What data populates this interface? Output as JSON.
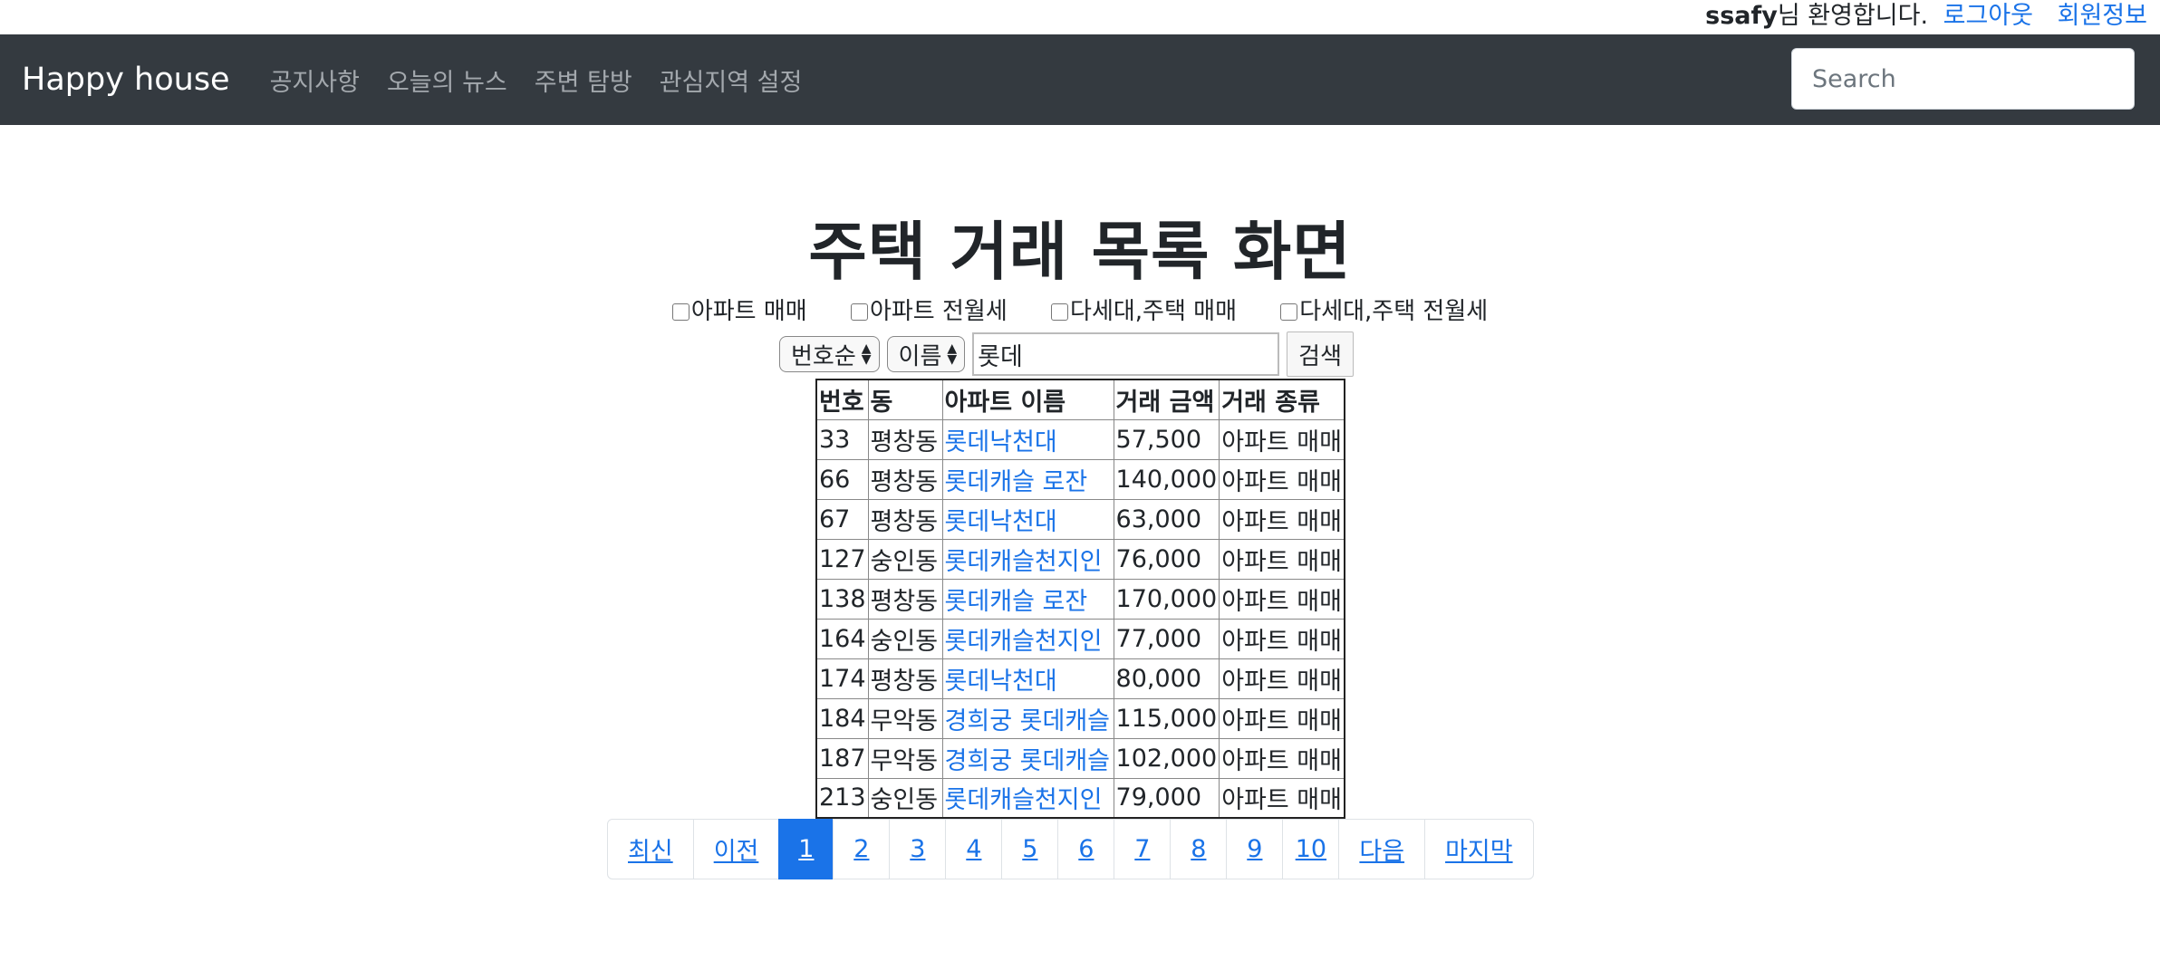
{
  "topbar": {
    "username": "ssafy",
    "greeting": "님 환영합니다.",
    "logout": "로그아웃",
    "profile": "회원정보"
  },
  "navbar": {
    "brand": "Happy house",
    "links": [
      "공지사항",
      "오늘의 뉴스",
      "주변 탐방",
      "관심지역 설정"
    ],
    "search_placeholder": "Search"
  },
  "page_title": "주택 거래 목록 화면",
  "filters": [
    "아파트 매매",
    "아파트 전월세",
    "다세대,주택 매매",
    "다세대,주택 전월세"
  ],
  "controls": {
    "sort_select": "번호순",
    "field_select": "이름",
    "query": "롯데",
    "search_button": "검색"
  },
  "table": {
    "headers": [
      "번호",
      "동",
      "아파트 이름",
      "거래 금액",
      "거래 종류"
    ],
    "rows": [
      [
        "33",
        "평창동",
        "롯데낙천대",
        "57,500",
        "아파트 매매"
      ],
      [
        "66",
        "평창동",
        "롯데캐슬 로잔",
        "140,000",
        "아파트 매매"
      ],
      [
        "67",
        "평창동",
        "롯데낙천대",
        "63,000",
        "아파트 매매"
      ],
      [
        "127",
        "숭인동",
        "롯데캐슬천지인",
        "76,000",
        "아파트 매매"
      ],
      [
        "138",
        "평창동",
        "롯데캐슬 로잔",
        "170,000",
        "아파트 매매"
      ],
      [
        "164",
        "숭인동",
        "롯데캐슬천지인",
        "77,000",
        "아파트 매매"
      ],
      [
        "174",
        "평창동",
        "롯데낙천대",
        "80,000",
        "아파트 매매"
      ],
      [
        "184",
        "무악동",
        "경희궁 롯데캐슬",
        "115,000",
        "아파트 매매"
      ],
      [
        "187",
        "무악동",
        "경희궁 롯데캐슬",
        "102,000",
        "아파트 매매"
      ],
      [
        "213",
        "숭인동",
        "롯데캐슬천지인",
        "79,000",
        "아파트 매매"
      ]
    ]
  },
  "pagination": {
    "first": "최신",
    "prev": "이전",
    "pages": [
      "1",
      "2",
      "3",
      "4",
      "5",
      "6",
      "7",
      "8",
      "9",
      "10"
    ],
    "active": "1",
    "next": "다음",
    "last": "마지막"
  }
}
